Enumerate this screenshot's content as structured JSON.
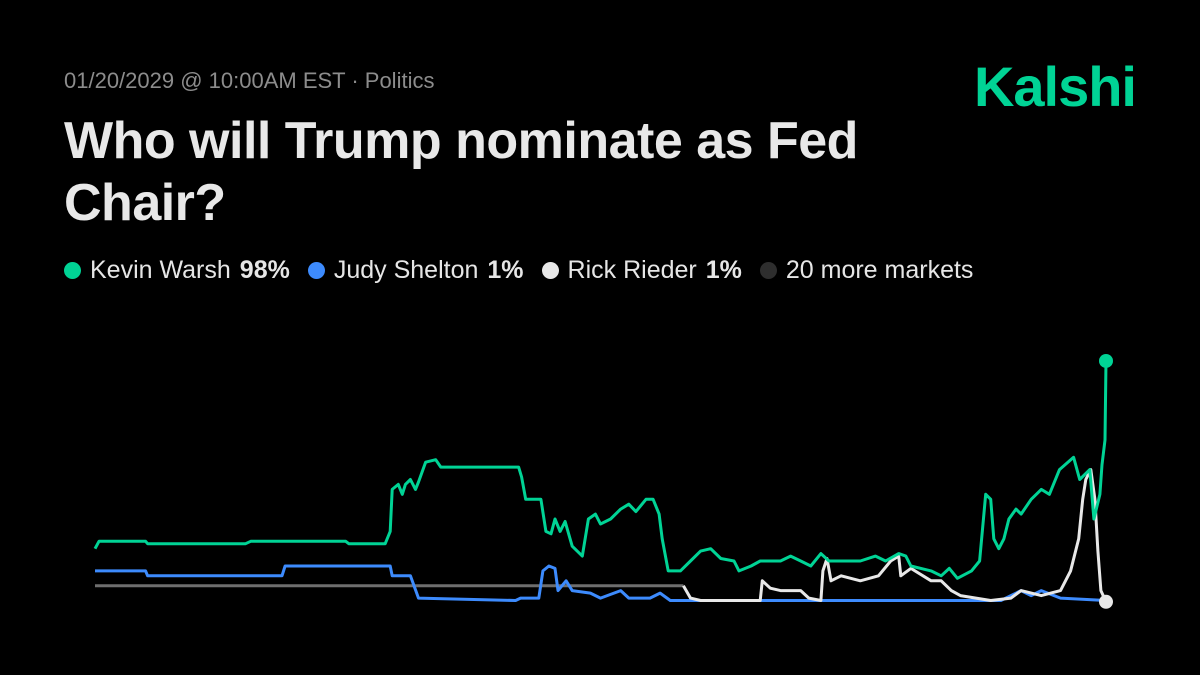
{
  "header": {
    "meta": "01/20/2029 @ 10:00AM EST · Politics",
    "logo": "Kalshi",
    "title": "Who will Trump nominate as Fed Chair?"
  },
  "legend": [
    {
      "name": "Kevin Warsh",
      "value": "98%",
      "color": "#00d395"
    },
    {
      "name": "Judy Shelton",
      "value": "1%",
      "color": "#3d8bfd"
    },
    {
      "name": "Rick Rieder",
      "value": "1%",
      "color": "#e8e8e8"
    },
    {
      "name": "20 more markets",
      "value": "",
      "color": "#2e2e2e"
    }
  ],
  "chart_data": {
    "type": "line",
    "title": "Who will Trump nominate as Fed Chair?",
    "xlabel": "",
    "ylabel": "",
    "x_note": "no axis printed; x is relative time 0-100",
    "xlim": [
      0,
      100
    ],
    "ylim": [
      0,
      100
    ],
    "grid": false,
    "legend_position": "top-left",
    "series": [
      {
        "name": "Kevin Warsh",
        "color": "#00d395",
        "end_marker": true,
        "points": [
          [
            0,
            22
          ],
          [
            0.4,
            25
          ],
          [
            5,
            25
          ],
          [
            5.2,
            24
          ],
          [
            14.9,
            24
          ],
          [
            15.4,
            25
          ],
          [
            24.8,
            25
          ],
          [
            25.1,
            24
          ],
          [
            28.7,
            24
          ],
          [
            29.2,
            29
          ],
          [
            29.4,
            46
          ],
          [
            30,
            48
          ],
          [
            30.4,
            44
          ],
          [
            30.7,
            48
          ],
          [
            31.2,
            50
          ],
          [
            31.7,
            46
          ],
          [
            32,
            49
          ],
          [
            32.7,
            57
          ],
          [
            33.7,
            58
          ],
          [
            34.2,
            55
          ],
          [
            41.9,
            55
          ],
          [
            42.2,
            51
          ],
          [
            42.6,
            42
          ],
          [
            44.1,
            42
          ],
          [
            44.6,
            29
          ],
          [
            45.1,
            28
          ],
          [
            45.5,
            34
          ],
          [
            46,
            29
          ],
          [
            46.5,
            33
          ],
          [
            47.2,
            23
          ],
          [
            48.2,
            19
          ],
          [
            48.8,
            34
          ],
          [
            49.5,
            36
          ],
          [
            50,
            32
          ],
          [
            51,
            34
          ],
          [
            52,
            38
          ],
          [
            52.8,
            40
          ],
          [
            53.5,
            37
          ],
          [
            54.5,
            42
          ],
          [
            55.2,
            42
          ],
          [
            55.8,
            36
          ],
          [
            56.1,
            26
          ],
          [
            56.7,
            13
          ],
          [
            57.9,
            13
          ],
          [
            58.9,
            17
          ],
          [
            59.9,
            21
          ],
          [
            60.9,
            22
          ],
          [
            61.9,
            18
          ],
          [
            63.2,
            17
          ],
          [
            63.7,
            13
          ],
          [
            64.9,
            15
          ],
          [
            65.8,
            17
          ],
          [
            67.8,
            17
          ],
          [
            68.8,
            19
          ],
          [
            69.8,
            17
          ],
          [
            70.8,
            15
          ],
          [
            71.8,
            20
          ],
          [
            72.6,
            17
          ],
          [
            73.8,
            17
          ],
          [
            75.7,
            17
          ],
          [
            77.2,
            19
          ],
          [
            78.2,
            17
          ],
          [
            79.5,
            20
          ],
          [
            80.2,
            19
          ],
          [
            80.7,
            15
          ],
          [
            82.7,
            13
          ],
          [
            83.7,
            11
          ],
          [
            84.5,
            14
          ],
          [
            85.3,
            10
          ],
          [
            86.7,
            13
          ],
          [
            87.5,
            17
          ],
          [
            88.1,
            44
          ],
          [
            88.6,
            42
          ],
          [
            88.9,
            26
          ],
          [
            89.4,
            22
          ],
          [
            89.9,
            26
          ],
          [
            90.4,
            34
          ],
          [
            91.1,
            38
          ],
          [
            91.6,
            36
          ],
          [
            92.6,
            42
          ],
          [
            93.6,
            46
          ],
          [
            94.4,
            44
          ],
          [
            95.4,
            54
          ],
          [
            96.8,
            59
          ],
          [
            97.4,
            50
          ],
          [
            98.4,
            54
          ],
          [
            98.8,
            34
          ],
          [
            99.4,
            44
          ],
          [
            99.6,
            56
          ],
          [
            99.9,
            66
          ],
          [
            100,
            98
          ]
        ]
      },
      {
        "name": "Judy Shelton",
        "color": "#3d8bfd",
        "end_marker": false,
        "points": [
          [
            0,
            13
          ],
          [
            5,
            13
          ],
          [
            5.2,
            11
          ],
          [
            18.5,
            11
          ],
          [
            18.8,
            15
          ],
          [
            29.2,
            15
          ],
          [
            29.4,
            11
          ],
          [
            31.2,
            11
          ],
          [
            32,
            2
          ],
          [
            41.6,
            1
          ],
          [
            42.1,
            2
          ],
          [
            43.9,
            2
          ],
          [
            44.3,
            13
          ],
          [
            44.9,
            15
          ],
          [
            45.5,
            14
          ],
          [
            45.8,
            5
          ],
          [
            46.6,
            9
          ],
          [
            47.2,
            5
          ],
          [
            49,
            4
          ],
          [
            50,
            2
          ],
          [
            52,
            5
          ],
          [
            52.8,
            2
          ],
          [
            54.9,
            2
          ],
          [
            55.9,
            4
          ],
          [
            56.9,
            1
          ],
          [
            58,
            1
          ],
          [
            79.7,
            1
          ],
          [
            89.6,
            1
          ],
          [
            91.6,
            5
          ],
          [
            92.6,
            3
          ],
          [
            93.6,
            5
          ],
          [
            95.5,
            2
          ],
          [
            100,
            1
          ]
        ]
      },
      {
        "name": "Rick Rieder",
        "color": "#e8e8e8",
        "end_marker": true,
        "points": [
          [
            58.2,
            7
          ],
          [
            58.9,
            2
          ],
          [
            59.9,
            1
          ],
          [
            65.8,
            1
          ],
          [
            66,
            9
          ],
          [
            66.8,
            6
          ],
          [
            67.8,
            5
          ],
          [
            69.8,
            5
          ],
          [
            70.6,
            2
          ],
          [
            71.8,
            1
          ],
          [
            72,
            13
          ],
          [
            72.4,
            18
          ],
          [
            72.8,
            9
          ],
          [
            73.8,
            11
          ],
          [
            75.7,
            9
          ],
          [
            77.5,
            11
          ],
          [
            78.7,
            17
          ],
          [
            79.5,
            19
          ],
          [
            79.7,
            11
          ],
          [
            80.7,
            14
          ],
          [
            82.7,
            9
          ],
          [
            83.7,
            9
          ],
          [
            84.7,
            5
          ],
          [
            85.6,
            3
          ],
          [
            88.6,
            1
          ],
          [
            90.6,
            2
          ],
          [
            91.6,
            5
          ],
          [
            93.6,
            3
          ],
          [
            95.5,
            5
          ],
          [
            96.5,
            13
          ],
          [
            97.3,
            26
          ],
          [
            97.7,
            42
          ],
          [
            98,
            50
          ],
          [
            98.5,
            54
          ],
          [
            98.9,
            42
          ],
          [
            99.2,
            21
          ],
          [
            99.5,
            5
          ],
          [
            100,
            0.5
          ]
        ]
      },
      {
        "name": "20 more markets",
        "color": "#6e6e6e",
        "end_marker": false,
        "points": [
          [
            0,
            7
          ],
          [
            58.2,
            7
          ]
        ]
      }
    ]
  }
}
